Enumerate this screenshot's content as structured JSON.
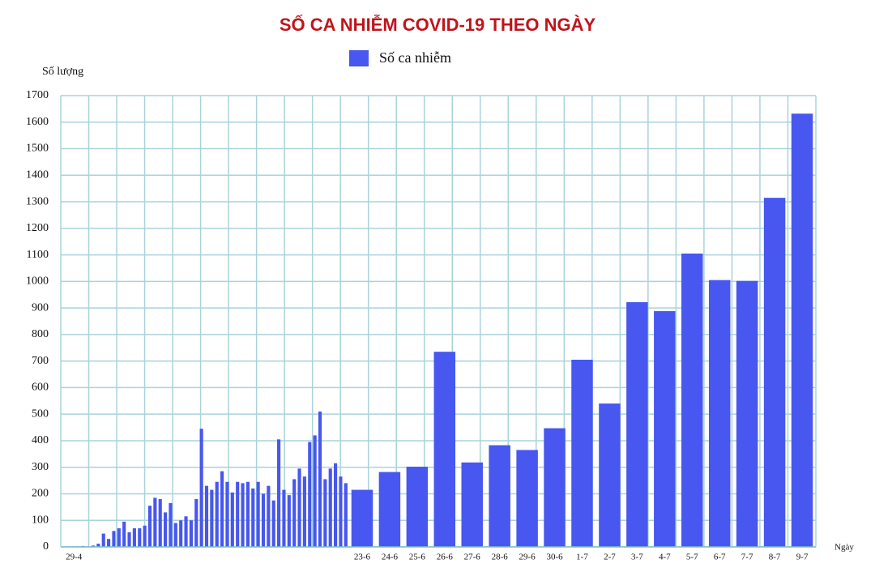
{
  "chart_data": {
    "type": "bar",
    "title": "SỐ CA NHIỄM COVID-19 THEO NGÀY",
    "y_label": "Số lượng",
    "x_label": "Ngày",
    "series": [
      {
        "name": "Số ca nhiễm",
        "color": "#4757ef",
        "values": [
          2,
          2,
          2,
          3,
          2,
          5,
          12,
          50,
          30,
          60,
          70,
          95,
          55,
          70,
          70,
          80,
          155,
          185,
          180,
          130,
          165,
          90,
          100,
          115,
          100,
          180,
          445,
          230,
          215,
          245,
          285,
          245,
          205,
          245,
          240,
          245,
          220,
          245,
          200,
          230,
          175,
          405,
          215,
          195,
          255,
          295,
          265,
          395,
          420,
          510,
          255,
          295,
          315,
          265,
          240,
          215,
          282,
          302,
          735,
          318,
          383,
          365,
          447,
          705,
          540,
          922,
          888,
          1105,
          1005,
          1002,
          1315,
          1632
        ]
      }
    ],
    "categories": [
      "29-4",
      null,
      null,
      null,
      null,
      null,
      null,
      null,
      null,
      null,
      null,
      null,
      null,
      null,
      null,
      null,
      null,
      null,
      null,
      null,
      null,
      null,
      null,
      null,
      null,
      null,
      null,
      null,
      null,
      null,
      null,
      null,
      null,
      null,
      null,
      null,
      null,
      null,
      null,
      null,
      null,
      null,
      null,
      null,
      null,
      null,
      null,
      null,
      null,
      null,
      null,
      null,
      null,
      null,
      null,
      "23-6",
      "24-6",
      "25-6",
      "26-6",
      "27-6",
      "28-6",
      "29-6",
      "30-6",
      "1-7",
      "2-7",
      "3-7",
      "4-7",
      "5-7",
      "6-7",
      "7-7",
      "8-7",
      "9-7"
    ],
    "ylim": [
      0,
      1700
    ],
    "yticks": [
      0,
      100,
      200,
      300,
      400,
      500,
      600,
      700,
      800,
      900,
      1000,
      1100,
      1200,
      1300,
      1400,
      1500,
      1600,
      1700
    ],
    "grid": true
  }
}
